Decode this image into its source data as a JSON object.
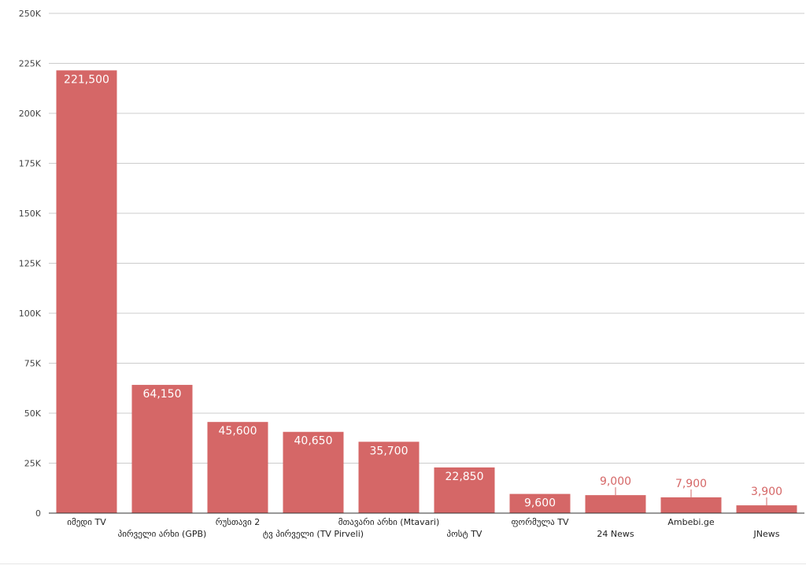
{
  "chart_data": {
    "type": "bar",
    "title": "",
    "xlabel": "",
    "ylabel": "",
    "ylim": [
      0,
      250000
    ],
    "yticks": [
      0,
      25000,
      50000,
      75000,
      100000,
      125000,
      150000,
      175000,
      200000,
      225000,
      250000
    ],
    "ytick_labels": [
      "0",
      "25K",
      "50K",
      "75K",
      "100K",
      "125K",
      "150K",
      "175K",
      "200K",
      "225K",
      "250K"
    ],
    "grid": true,
    "legend": "none",
    "bar_color": "#d56767",
    "categories": [
      "იმედი TV",
      "პირველი არხი (GPB)",
      "რუსთავი 2",
      "ტვ პირველი (TV Pirveli)",
      "მთავარი არხი (Mtavari)",
      "პოსტ TV",
      "ფორმულა TV",
      "24 News",
      "Ambebi.ge",
      "JNews"
    ],
    "values": [
      221500,
      64150,
      45600,
      40650,
      35700,
      22850,
      9600,
      9000,
      7900,
      3900
    ],
    "value_labels": [
      "221,500",
      "64,150",
      "45,600",
      "40,650",
      "35,700",
      "22,850",
      "9,600",
      "9,000",
      "7,900",
      "3,900"
    ]
  }
}
